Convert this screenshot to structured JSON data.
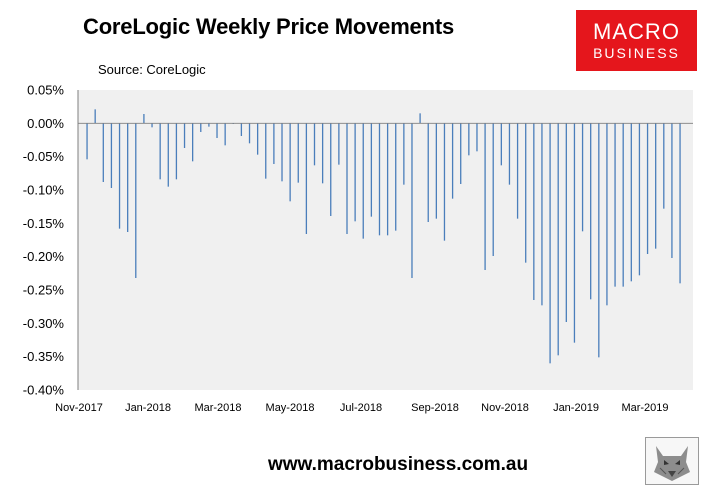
{
  "header": {
    "title": "CoreLogic Weekly Price Movements",
    "source": "Source: CoreLogic"
  },
  "brand": {
    "line1": "MACRO",
    "line2": "BUSINESS",
    "color": "#e5161c"
  },
  "footer": {
    "url": "www.macrobusiness.com.au",
    "logo_icon": "wolf-logo-icon"
  },
  "chart_data": {
    "type": "bar",
    "title": "CoreLogic Weekly Price Movements",
    "xlabel": "",
    "ylabel": "",
    "ylim": [
      -0.4,
      0.05
    ],
    "y_ticks": [
      "0.05%",
      "0.00%",
      "-0.05%",
      "-0.10%",
      "-0.15%",
      "-0.20%",
      "-0.25%",
      "-0.30%",
      "-0.35%",
      "-0.40%"
    ],
    "x_ticks": [
      "Nov-2017",
      "Jan-2018",
      "Mar-2018",
      "May-2018",
      "Jul-2018",
      "Sep-2018",
      "Nov-2018",
      "Jan-2019",
      "Mar-2019"
    ],
    "grid": false,
    "bar_color": "#4a7ebb",
    "plot_background": "#f0f0f0",
    "values": [
      -0.054,
      0.021,
      -0.088,
      -0.097,
      -0.158,
      -0.163,
      -0.232,
      0.014,
      -0.006,
      -0.084,
      -0.095,
      -0.084,
      -0.037,
      -0.057,
      -0.013,
      -0.005,
      -0.022,
      -0.033,
      0.0,
      -0.019,
      -0.03,
      -0.047,
      -0.083,
      -0.061,
      -0.087,
      -0.117,
      -0.089,
      -0.166,
      -0.063,
      -0.09,
      -0.139,
      -0.062,
      -0.166,
      -0.147,
      -0.173,
      -0.14,
      -0.168,
      -0.168,
      -0.161,
      -0.092,
      -0.232,
      0.015,
      -0.148,
      -0.143,
      -0.176,
      -0.113,
      -0.091,
      -0.048,
      -0.042,
      -0.22,
      -0.199,
      -0.063,
      -0.092,
      -0.143,
      -0.209,
      -0.265,
      -0.273,
      -0.36,
      -0.348,
      -0.298,
      -0.329,
      -0.162,
      -0.264,
      -0.351,
      -0.273,
      -0.245,
      -0.245,
      -0.237,
      -0.228,
      -0.196,
      -0.188,
      -0.128,
      -0.202,
      -0.24
    ]
  }
}
